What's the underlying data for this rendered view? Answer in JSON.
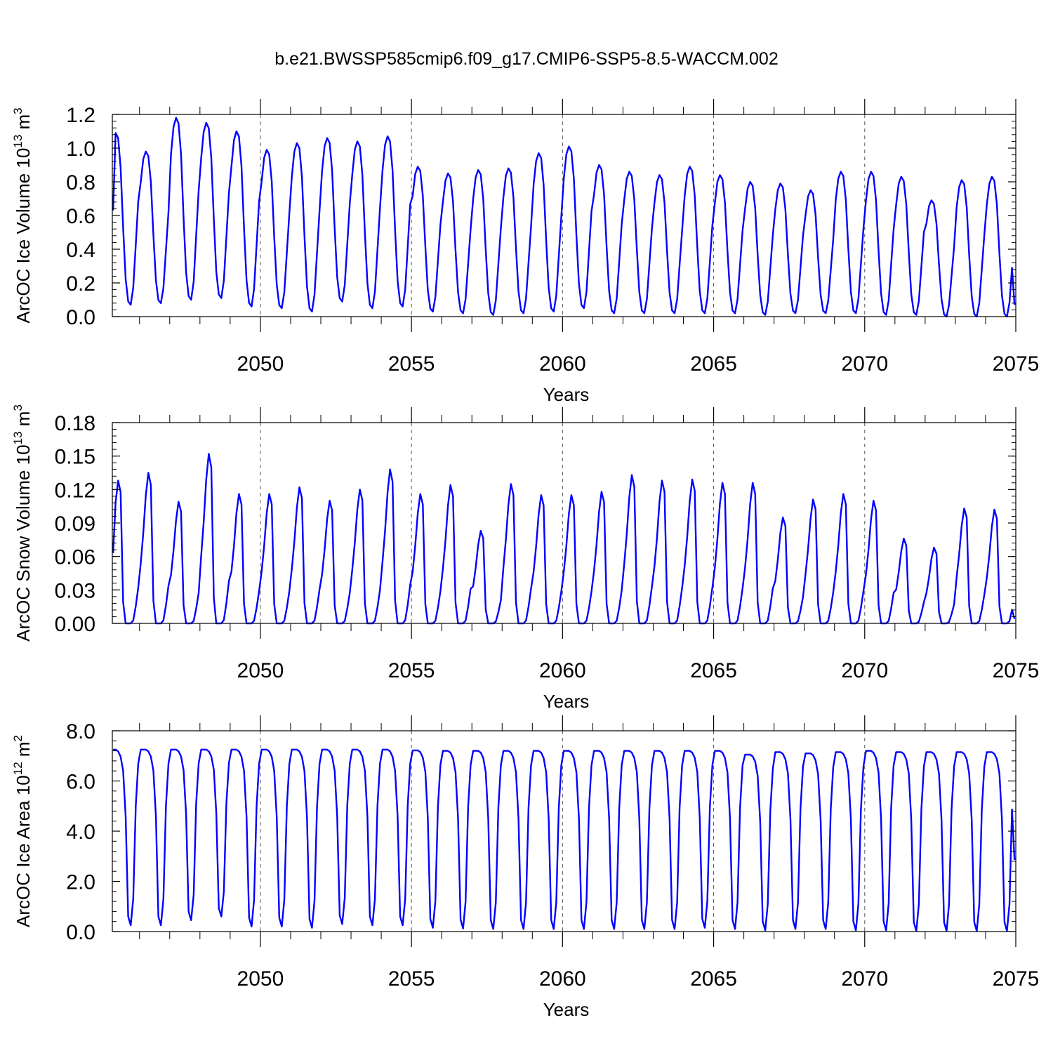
{
  "figure": {
    "title": "b.e21.BWSSP585cmip6.f09_g17.CMIP6-SSP5-8.5-WACCM.002"
  },
  "colors": {
    "line": "#0000ff",
    "axis": "#000000",
    "grid": "#555555"
  },
  "chart_data": [
    {
      "type": "line",
      "name": "ice-volume",
      "ylabel_base": "ArcOC Ice Volume 10",
      "ylabel_exp": "13",
      "ylabel_unit": " m",
      "ylabel_unit_exp": "3",
      "xlabel": "Years",
      "xlim": [
        2045.1,
        2075
      ],
      "ylim": [
        0,
        1.2
      ],
      "yticks": [
        0,
        0.2,
        0.4,
        0.6,
        0.8,
        1.0,
        1.2
      ],
      "ytick_labels": [
        "0.0",
        "0.2",
        "0.4",
        "0.6",
        "0.8",
        "1.0",
        "1.2"
      ],
      "yminor_step": 0.04,
      "xticks": [
        2050,
        2055,
        2060,
        2065,
        2070,
        2075
      ],
      "xtick_labels": [
        "2050",
        "2055",
        "2060",
        "2065",
        "2070",
        "2075"
      ],
      "start_value": 0.63,
      "end_value": 0.07,
      "annual_max": [
        1.09,
        0.98,
        1.18,
        1.15,
        1.1,
        0.99,
        1.03,
        1.06,
        1.04,
        1.07,
        0.89,
        0.85,
        0.87,
        0.88,
        0.97,
        1.01,
        0.9,
        0.86,
        0.84,
        0.89,
        0.84,
        0.8,
        0.79,
        0.75,
        0.86,
        0.86,
        0.83,
        0.69,
        0.81,
        0.83
      ],
      "annual_min": [
        0.07,
        0.08,
        0.1,
        0.11,
        0.06,
        0.05,
        0.03,
        0.09,
        0.05,
        0.06,
        0.03,
        0.02,
        0.01,
        0.02,
        0.03,
        0.05,
        0.02,
        0.02,
        0.02,
        0.02,
        0.02,
        0.01,
        0.02,
        0.02,
        0.02,
        0.01,
        0.01,
        0.0,
        0.0,
        0.0
      ],
      "seasonal_shape": "ice"
    },
    {
      "type": "line",
      "name": "snow-volume",
      "ylabel_base": "ArcOC Snow Volume 10",
      "ylabel_exp": "13",
      "ylabel_unit": " m",
      "ylabel_unit_exp": "3",
      "xlabel": "Years",
      "xlim": [
        2045.1,
        2075
      ],
      "ylim": [
        0,
        0.18
      ],
      "yticks": [
        0,
        0.03,
        0.06,
        0.09,
        0.12,
        0.15,
        0.18
      ],
      "ytick_labels": [
        "0.00",
        "0.03",
        "0.06",
        "0.09",
        "0.12",
        "0.15",
        "0.18"
      ],
      "yminor_step": 0.006,
      "xticks": [
        2050,
        2055,
        2060,
        2065,
        2070,
        2075
      ],
      "xtick_labels": [
        "2050",
        "2055",
        "2060",
        "2065",
        "2070",
        "2075"
      ],
      "start_value": 0.063,
      "end_value": 0.004,
      "annual_max": [
        0.128,
        0.135,
        0.109,
        0.152,
        0.116,
        0.116,
        0.122,
        0.11,
        0.12,
        0.138,
        0.116,
        0.124,
        0.083,
        0.125,
        0.115,
        0.115,
        0.118,
        0.133,
        0.128,
        0.129,
        0.126,
        0.126,
        0.095,
        0.111,
        0.116,
        0.11,
        0.076,
        0.068,
        0.103,
        0.102
      ],
      "annual_min": [
        0,
        0,
        0,
        0,
        0,
        0,
        0,
        0,
        0,
        0,
        0,
        0,
        0,
        0,
        0,
        0,
        0,
        0,
        0,
        0,
        0,
        0,
        0,
        0,
        0,
        0,
        0,
        0,
        0,
        0
      ],
      "seasonal_shape": "snow"
    },
    {
      "type": "line",
      "name": "ice-area",
      "ylabel_base": "ArcOC Ice Area 10",
      "ylabel_exp": "12",
      "ylabel_unit": " m",
      "ylabel_unit_exp": "2",
      "xlabel": "Years",
      "xlim": [
        2045.1,
        2075
      ],
      "ylim": [
        0,
        8
      ],
      "yticks": [
        0,
        2,
        4,
        6,
        8
      ],
      "ytick_labels": [
        "0.0",
        "2.0",
        "4.0",
        "6.0",
        "8.0"
      ],
      "yminor_step": 0.4,
      "xticks": [
        2050,
        2055,
        2060,
        2065,
        2070,
        2075
      ],
      "xtick_labels": [
        "2050",
        "2055",
        "2060",
        "2065",
        "2070",
        "2075"
      ],
      "start_value": 7.25,
      "end_value": 2.85,
      "annual_max": [
        7.25,
        7.25,
        7.25,
        7.25,
        7.25,
        7.25,
        7.25,
        7.25,
        7.25,
        7.25,
        7.22,
        7.2,
        7.2,
        7.2,
        7.2,
        7.2,
        7.2,
        7.2,
        7.2,
        7.2,
        7.2,
        7.05,
        7.15,
        7.1,
        7.15,
        7.2,
        7.15,
        7.15,
        7.15,
        7.15
      ],
      "annual_min": [
        0.25,
        0.25,
        0.45,
        0.6,
        0.2,
        0.2,
        0.15,
        0.3,
        0.25,
        0.25,
        0.15,
        0.12,
        0.1,
        0.1,
        0.1,
        0.1,
        0.1,
        0.1,
        0.1,
        0.15,
        0.1,
        0.05,
        0.1,
        0.1,
        0.05,
        0.05,
        0.02,
        0.02,
        0.02,
        0.02
      ],
      "seasonal_shape": "area"
    }
  ]
}
